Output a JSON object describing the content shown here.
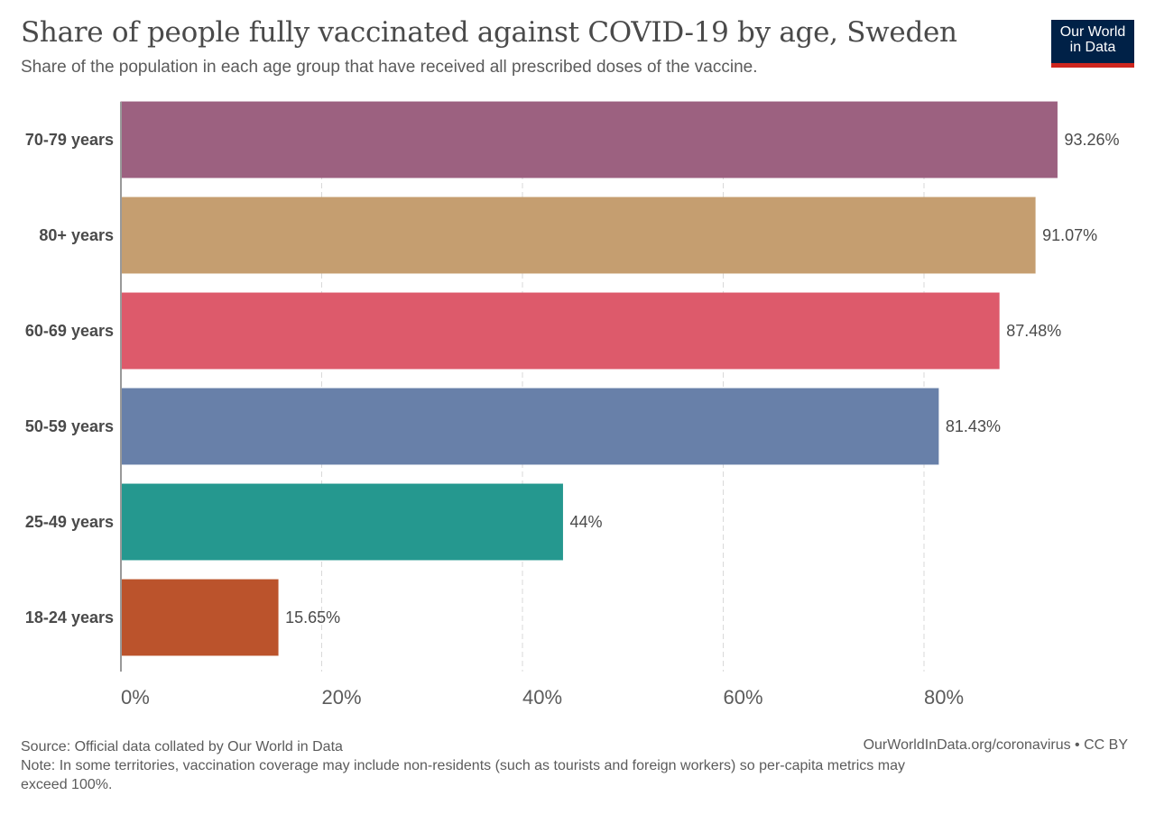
{
  "header": {
    "title": "Share of people fully vaccinated against COVID-19 by age, Sweden",
    "subtitle": "Share of the population in each age group that have received all prescribed doses of the vaccine."
  },
  "logo": {
    "line1": "Our World",
    "line2": "in Data",
    "bg_color": "#002147",
    "accent_color": "#ce261e"
  },
  "footer": {
    "source": "Source: Official data collated by Our World in Data",
    "note_line1": "Note: In some territories, vaccination coverage may include non-residents (such as tourists and foreign workers) so per-capita metrics may",
    "note_line2": "exceed 100%.",
    "credit": "OurWorldInData.org/coronavirus • CC BY"
  },
  "chart_data": {
    "type": "bar",
    "orientation": "horizontal",
    "title": "Share of people fully vaccinated against COVID-19 by age, Sweden",
    "subtitle": "Share of the population in each age group that have received all prescribed doses of the vaccine.",
    "xlabel": "",
    "ylabel": "",
    "categories": [
      "70-79 years",
      "80+ years",
      "60-69 years",
      "50-59 years",
      "25-49 years",
      "18-24 years"
    ],
    "values": [
      93.26,
      91.07,
      87.48,
      81.43,
      44,
      15.65
    ],
    "value_labels": [
      "93.26%",
      "91.07%",
      "87.48%",
      "81.43%",
      "44%",
      "15.65%"
    ],
    "colors": [
      "#9c6180",
      "#c59e70",
      "#dd5a6b",
      "#6880a9",
      "#25988f",
      "#bb532c"
    ],
    "xlim": [
      0,
      100
    ],
    "x_ticks": [
      0,
      20,
      40,
      60,
      80
    ],
    "x_tick_labels": [
      "0%",
      "20%",
      "40%",
      "60%",
      "80%"
    ],
    "grid": "vertical-dashed",
    "legend": "none"
  }
}
